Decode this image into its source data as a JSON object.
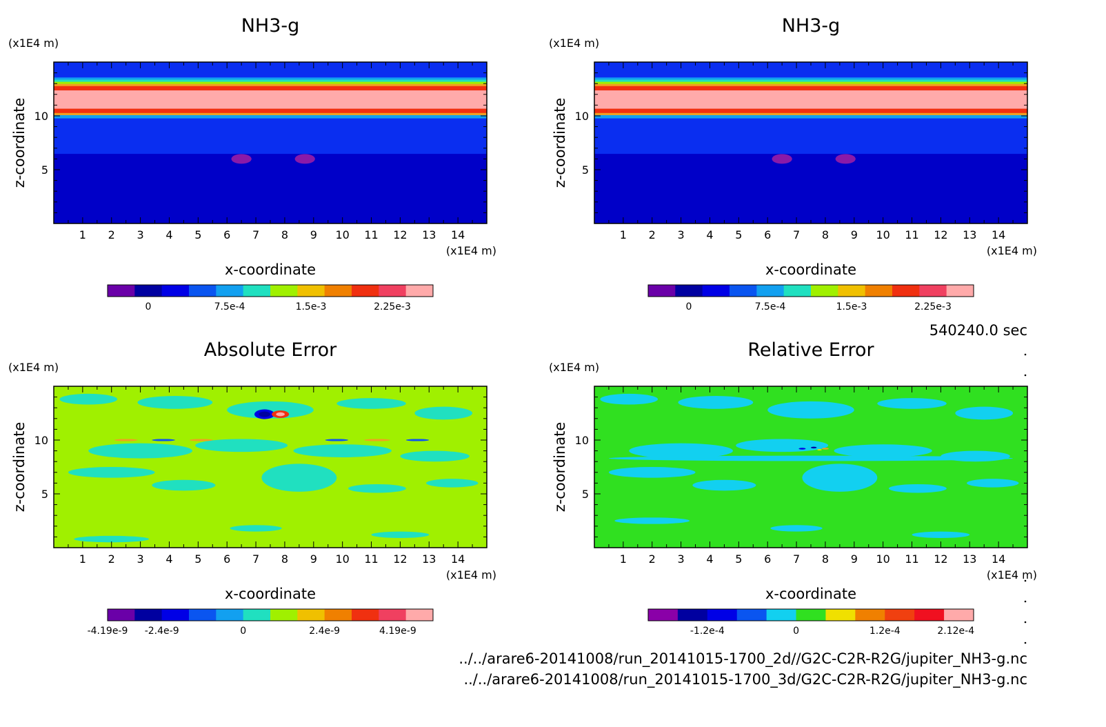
{
  "time_label": "540240.0 sec",
  "file_paths": [
    "../../arare6-20141008/run_20141015-1700_2d//G2C-C2R-R2G/jupiter_NH3-g.nc",
    "../../arare6-20141008/run_20141015-1700_3d/G2C-C2R-R2G/jupiter_NH3-g.nc"
  ],
  "chart_data": [
    {
      "type": "heatmap",
      "title": "NH3-g",
      "xlabel": "x-coordinate",
      "ylabel": "z-coordinate",
      "x_unit": "(x1E4 m)",
      "z_unit": "(x1E4 m)",
      "xlim": [
        0,
        15
      ],
      "zlim": [
        0,
        15
      ],
      "x_ticks": [
        1,
        2,
        3,
        4,
        5,
        6,
        7,
        8,
        9,
        10,
        11,
        12,
        13,
        14
      ],
      "z_ticks": [
        5,
        10
      ],
      "field_bands": [
        {
          "z0": 0,
          "z1": 6.5,
          "color": "#0000c8"
        },
        {
          "z0": 6.5,
          "z1": 9.8,
          "color": "#0a2ef0"
        },
        {
          "z0": 9.8,
          "z1": 10.1,
          "color": "#12a0f0"
        },
        {
          "z0": 10.1,
          "z1": 10.3,
          "color": "#f0a020"
        },
        {
          "z0": 10.3,
          "z1": 10.7,
          "color": "#f03010"
        },
        {
          "z0": 10.7,
          "z1": 12.4,
          "color": "#ffaaaa"
        },
        {
          "z0": 12.4,
          "z1": 12.8,
          "color": "#f03010"
        },
        {
          "z0": 12.8,
          "z1": 13.0,
          "color": "#f0a020"
        },
        {
          "z0": 13.0,
          "z1": 13.2,
          "color": "#a0f000"
        },
        {
          "z0": 13.2,
          "z1": 13.4,
          "color": "#20e0c0"
        },
        {
          "z0": 13.4,
          "z1": 13.6,
          "color": "#12a0f0"
        },
        {
          "z0": 13.6,
          "z1": 15,
          "color": "#0a2ef0"
        }
      ],
      "field_blobs": [
        {
          "x": 6.5,
          "z": 6.0,
          "rx": 0.35,
          "rz": 0.45,
          "color": "#8a1aa8"
        },
        {
          "x": 8.7,
          "z": 6.0,
          "rx": 0.35,
          "rz": 0.45,
          "color": "#8a1aa8"
        }
      ],
      "colorbar": {
        "colors": [
          "#6a00a8",
          "#0000a0",
          "#0000e6",
          "#0a55f0",
          "#12a0f0",
          "#20e0c0",
          "#a0f000",
          "#f0c000",
          "#f08000",
          "#f03010",
          "#f04060",
          "#ffaaaa"
        ],
        "tick_labels": [
          "0",
          "7.5e-4",
          "1.5e-3",
          "2.25e-3"
        ],
        "tick_segments": [
          1.5,
          4.5,
          7.5,
          10.5
        ]
      }
    },
    {
      "type": "heatmap",
      "title": "NH3-g",
      "xlabel": "x-coordinate",
      "ylabel": "z-coordinate",
      "x_unit": "(x1E4 m)",
      "z_unit": "(x1E4 m)",
      "xlim": [
        0,
        15
      ],
      "zlim": [
        0,
        15
      ],
      "x_ticks": [
        1,
        2,
        3,
        4,
        5,
        6,
        7,
        8,
        9,
        10,
        11,
        12,
        13,
        14
      ],
      "z_ticks": [
        5,
        10
      ],
      "field_bands": [
        {
          "z0": 0,
          "z1": 6.5,
          "color": "#0000c8"
        },
        {
          "z0": 6.5,
          "z1": 9.8,
          "color": "#0a2ef0"
        },
        {
          "z0": 9.8,
          "z1": 10.1,
          "color": "#12a0f0"
        },
        {
          "z0": 10.1,
          "z1": 10.3,
          "color": "#f0a020"
        },
        {
          "z0": 10.3,
          "z1": 10.7,
          "color": "#f03010"
        },
        {
          "z0": 10.7,
          "z1": 12.4,
          "color": "#ffaaaa"
        },
        {
          "z0": 12.4,
          "z1": 12.8,
          "color": "#f03010"
        },
        {
          "z0": 12.8,
          "z1": 13.0,
          "color": "#f0a020"
        },
        {
          "z0": 13.0,
          "z1": 13.2,
          "color": "#a0f000"
        },
        {
          "z0": 13.2,
          "z1": 13.4,
          "color": "#20e0c0"
        },
        {
          "z0": 13.4,
          "z1": 13.6,
          "color": "#12a0f0"
        },
        {
          "z0": 13.6,
          "z1": 15,
          "color": "#0a2ef0"
        }
      ],
      "field_blobs": [
        {
          "x": 6.5,
          "z": 6.0,
          "rx": 0.35,
          "rz": 0.45,
          "color": "#8a1aa8"
        },
        {
          "x": 8.7,
          "z": 6.0,
          "rx": 0.35,
          "rz": 0.45,
          "color": "#8a1aa8"
        }
      ],
      "colorbar": {
        "colors": [
          "#6a00a8",
          "#0000a0",
          "#0000e6",
          "#0a55f0",
          "#12a0f0",
          "#20e0c0",
          "#a0f000",
          "#f0c000",
          "#f08000",
          "#f03010",
          "#f04060",
          "#ffaaaa"
        ],
        "tick_labels": [
          "0",
          "7.5e-4",
          "1.5e-3",
          "2.25e-3"
        ],
        "tick_segments": [
          1.5,
          4.5,
          7.5,
          10.5
        ]
      }
    },
    {
      "type": "heatmap",
      "title": "Absolute Error",
      "xlabel": "x-coordinate",
      "ylabel": "z-coordinate",
      "x_unit": "(x1E4 m)",
      "z_unit": "(x1E4 m)",
      "xlim": [
        0,
        15
      ],
      "zlim": [
        0,
        15
      ],
      "x_ticks": [
        1,
        2,
        3,
        4,
        5,
        6,
        7,
        8,
        9,
        10,
        11,
        12,
        13,
        14
      ],
      "z_ticks": [
        5,
        10
      ],
      "field_bands": [
        {
          "z0": 0,
          "z1": 15,
          "color": "#a0f000"
        }
      ],
      "field_blobs": [
        {
          "x": 1.2,
          "z": 13.8,
          "rx": 1.0,
          "rz": 0.5,
          "color": "#20e0c0"
        },
        {
          "x": 4.2,
          "z": 13.5,
          "rx": 1.3,
          "rz": 0.6,
          "color": "#20e0c0"
        },
        {
          "x": 7.5,
          "z": 12.8,
          "rx": 1.5,
          "rz": 0.8,
          "color": "#20e0c0"
        },
        {
          "x": 11.0,
          "z": 13.4,
          "rx": 1.2,
          "rz": 0.5,
          "color": "#20e0c0"
        },
        {
          "x": 13.5,
          "z": 12.5,
          "rx": 1.0,
          "rz": 0.6,
          "color": "#20e0c0"
        },
        {
          "x": 3.0,
          "z": 9.0,
          "rx": 1.8,
          "rz": 0.7,
          "color": "#20e0c0"
        },
        {
          "x": 6.5,
          "z": 9.5,
          "rx": 1.6,
          "rz": 0.6,
          "color": "#20e0c0"
        },
        {
          "x": 10.0,
          "z": 9.0,
          "rx": 1.7,
          "rz": 0.6,
          "color": "#20e0c0"
        },
        {
          "x": 13.2,
          "z": 8.5,
          "rx": 1.2,
          "rz": 0.5,
          "color": "#20e0c0"
        },
        {
          "x": 2.0,
          "z": 7.0,
          "rx": 1.5,
          "rz": 0.5,
          "color": "#20e0c0"
        },
        {
          "x": 8.5,
          "z": 6.5,
          "rx": 1.3,
          "rz": 1.3,
          "color": "#20e0c0"
        },
        {
          "x": 4.5,
          "z": 5.8,
          "rx": 1.1,
          "rz": 0.5,
          "color": "#20e0c0"
        },
        {
          "x": 11.2,
          "z": 5.5,
          "rx": 1.0,
          "rz": 0.4,
          "color": "#20e0c0"
        },
        {
          "x": 13.8,
          "z": 6.0,
          "rx": 0.9,
          "rz": 0.4,
          "color": "#20e0c0"
        },
        {
          "x": 2.0,
          "z": 0.8,
          "rx": 1.3,
          "rz": 0.3,
          "color": "#20e0c0"
        },
        {
          "x": 7.0,
          "z": 1.8,
          "rx": 0.9,
          "rz": 0.3,
          "color": "#20e0c0"
        },
        {
          "x": 12.0,
          "z": 1.2,
          "rx": 1.0,
          "rz": 0.3,
          "color": "#20e0c0"
        },
        {
          "x": 7.3,
          "z": 12.4,
          "rx": 0.35,
          "rz": 0.45,
          "color": "#0000e6"
        },
        {
          "x": 7.3,
          "z": 12.4,
          "rx": 0.2,
          "rz": 0.25,
          "color": "#0000a0"
        },
        {
          "x": 7.85,
          "z": 12.4,
          "rx": 0.3,
          "rz": 0.35,
          "color": "#f03010"
        },
        {
          "x": 7.85,
          "z": 12.4,
          "rx": 0.15,
          "rz": 0.18,
          "color": "#ffaaaa"
        },
        {
          "x": 2.5,
          "z": 10.0,
          "rx": 0.4,
          "rz": 0.1,
          "color": "#f0a020"
        },
        {
          "x": 5.1,
          "z": 10.0,
          "rx": 0.4,
          "rz": 0.1,
          "color": "#f0a020"
        },
        {
          "x": 11.2,
          "z": 10.0,
          "rx": 0.45,
          "rz": 0.1,
          "color": "#f0a020"
        },
        {
          "x": 3.8,
          "z": 10.0,
          "rx": 0.4,
          "rz": 0.1,
          "color": "#0a55f0"
        },
        {
          "x": 9.8,
          "z": 10.0,
          "rx": 0.4,
          "rz": 0.1,
          "color": "#0a55f0"
        },
        {
          "x": 12.6,
          "z": 10.0,
          "rx": 0.4,
          "rz": 0.1,
          "color": "#0a55f0"
        }
      ],
      "colorbar": {
        "colors": [
          "#6a00a8",
          "#0000a0",
          "#0000e6",
          "#0a55f0",
          "#12a0f0",
          "#20e0c0",
          "#a0f000",
          "#f0c000",
          "#f08000",
          "#f03010",
          "#f04060",
          "#ffaaaa"
        ],
        "tick_labels": [
          "-4.19e-9",
          "-2.4e-9",
          "0",
          "2.4e-9",
          "4.19e-9"
        ],
        "tick_segments": [
          0,
          2,
          5,
          8,
          10.7
        ]
      }
    },
    {
      "type": "heatmap",
      "title": "Relative Error",
      "xlabel": "x-coordinate",
      "ylabel": "z-coordinate",
      "x_unit": "(x1E4 m)",
      "z_unit": "(x1E4 m)",
      "xlim": [
        0,
        15
      ],
      "zlim": [
        0,
        15
      ],
      "x_ticks": [
        1,
        2,
        3,
        4,
        5,
        6,
        7,
        8,
        9,
        10,
        11,
        12,
        13,
        14
      ],
      "z_ticks": [
        5,
        10
      ],
      "field_bands": [
        {
          "z0": 0,
          "z1": 15,
          "color": "#30e020"
        }
      ],
      "field_blobs": [
        {
          "x": 1.2,
          "z": 13.8,
          "rx": 1.0,
          "rz": 0.5,
          "color": "#12d0f0"
        },
        {
          "x": 4.2,
          "z": 13.5,
          "rx": 1.3,
          "rz": 0.6,
          "color": "#12d0f0"
        },
        {
          "x": 7.5,
          "z": 12.8,
          "rx": 1.5,
          "rz": 0.8,
          "color": "#12d0f0"
        },
        {
          "x": 11.0,
          "z": 13.4,
          "rx": 1.2,
          "rz": 0.5,
          "color": "#12d0f0"
        },
        {
          "x": 13.5,
          "z": 12.5,
          "rx": 1.0,
          "rz": 0.6,
          "color": "#12d0f0"
        },
        {
          "x": 3.0,
          "z": 9.0,
          "rx": 1.8,
          "rz": 0.7,
          "color": "#12d0f0"
        },
        {
          "x": 6.5,
          "z": 9.5,
          "rx": 1.6,
          "rz": 0.6,
          "color": "#12d0f0"
        },
        {
          "x": 10.0,
          "z": 9.0,
          "rx": 1.7,
          "rz": 0.6,
          "color": "#12d0f0"
        },
        {
          "x": 13.2,
          "z": 8.5,
          "rx": 1.2,
          "rz": 0.5,
          "color": "#12d0f0"
        },
        {
          "x": 7.5,
          "z": 8.3,
          "rx": 7.0,
          "rz": 0.25,
          "color": "#12d0f0"
        },
        {
          "x": 2.0,
          "z": 7.0,
          "rx": 1.5,
          "rz": 0.5,
          "color": "#12d0f0"
        },
        {
          "x": 8.5,
          "z": 6.5,
          "rx": 1.3,
          "rz": 1.3,
          "color": "#12d0f0"
        },
        {
          "x": 4.5,
          "z": 5.8,
          "rx": 1.1,
          "rz": 0.5,
          "color": "#12d0f0"
        },
        {
          "x": 11.2,
          "z": 5.5,
          "rx": 1.0,
          "rz": 0.4,
          "color": "#12d0f0"
        },
        {
          "x": 13.8,
          "z": 6.0,
          "rx": 0.9,
          "rz": 0.4,
          "color": "#12d0f0"
        },
        {
          "x": 2.0,
          "z": 2.5,
          "rx": 1.3,
          "rz": 0.3,
          "color": "#12d0f0"
        },
        {
          "x": 7.0,
          "z": 1.8,
          "rx": 0.9,
          "rz": 0.3,
          "color": "#12d0f0"
        },
        {
          "x": 12.0,
          "z": 1.2,
          "rx": 1.0,
          "rz": 0.3,
          "color": "#12d0f0"
        },
        {
          "x": 7.2,
          "z": 9.2,
          "rx": 0.12,
          "rz": 0.08,
          "color": "#0000e6"
        },
        {
          "x": 7.6,
          "z": 9.3,
          "rx": 0.1,
          "rz": 0.08,
          "color": "#0000a0"
        },
        {
          "x": 8.0,
          "z": 9.2,
          "rx": 0.12,
          "rz": 0.08,
          "color": "#f0a020"
        },
        {
          "x": 7.8,
          "z": 9.1,
          "rx": 0.08,
          "rz": 0.06,
          "color": "#f0e000"
        }
      ],
      "colorbar": {
        "colors": [
          "#8a00a8",
          "#0000a0",
          "#0000e6",
          "#0a55f0",
          "#12d0f0",
          "#30e020",
          "#f0e000",
          "#f08000",
          "#f04010",
          "#f01020",
          "#ffaaaa"
        ],
        "tick_labels": [
          "-1.2e-4",
          "0",
          "1.2e-4",
          "2.12e-4"
        ],
        "tick_segments": [
          2,
          5,
          8,
          10.4
        ]
      }
    }
  ]
}
